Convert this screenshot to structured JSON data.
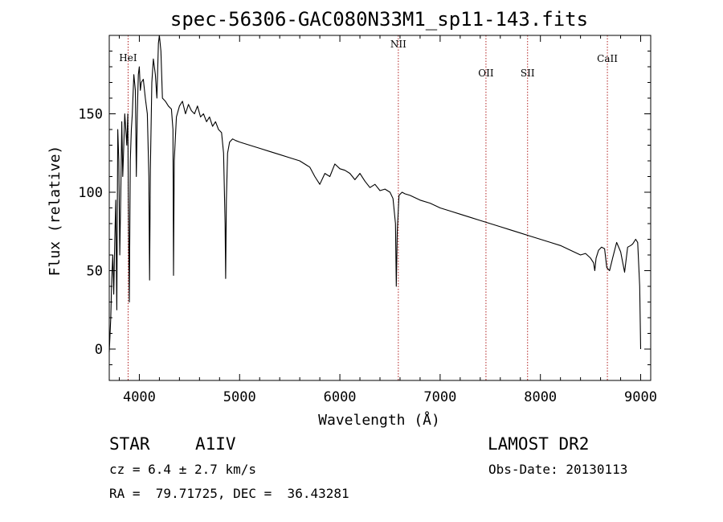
{
  "chart_data": {
    "type": "line",
    "title": "spec-56306-GAC080N33M1_sp11-143.fits",
    "xlabel": "Wavelength (Å)",
    "ylabel": "Flux (relative)",
    "xlim": [
      3700,
      9100
    ],
    "ylim": [
      -20,
      200
    ],
    "xticks": [
      4000,
      5000,
      6000,
      7000,
      8000,
      9000
    ],
    "yticks": [
      0,
      50,
      100,
      150
    ],
    "xtick_labels": [
      "4000",
      "5000",
      "6000",
      "7000",
      "8000",
      "9000"
    ],
    "ytick_labels": [
      "0",
      "50",
      "100",
      "150"
    ],
    "grid": false,
    "series": [
      {
        "color": "#000000",
        "x": [
          3700,
          3715,
          3725,
          3735,
          3745,
          3755,
          3765,
          3775,
          3785,
          3795,
          3805,
          3815,
          3825,
          3835,
          3845,
          3855,
          3865,
          3875,
          3885,
          3890,
          3900,
          3910,
          3920,
          3930,
          3945,
          3960,
          3970,
          3980,
          3990,
          4000,
          4010,
          4020,
          4040,
          4060,
          4080,
          4095,
          4102,
          4110,
          4125,
          4140,
          4160,
          4175,
          4190,
          4200,
          4215,
          4230,
          4260,
          4290,
          4320,
          4335,
          4341,
          4348,
          4370,
          4400,
          4430,
          4460,
          4490,
          4520,
          4550,
          4580,
          4610,
          4640,
          4670,
          4700,
          4730,
          4760,
          4790,
          4820,
          4840,
          4855,
          4861,
          4868,
          4880,
          4900,
          4930,
          4960,
          5000,
          5100,
          5200,
          5300,
          5400,
          5500,
          5600,
          5700,
          5750,
          5800,
          5850,
          5900,
          5950,
          6000,
          6050,
          6100,
          6150,
          6200,
          6250,
          6300,
          6350,
          6400,
          6450,
          6500,
          6530,
          6555,
          6563,
          6572,
          6590,
          6620,
          6650,
          6700,
          6800,
          6900,
          7000,
          7100,
          7200,
          7300,
          7400,
          7500,
          7600,
          7700,
          7800,
          7900,
          8000,
          8100,
          8200,
          8300,
          8400,
          8450,
          8500,
          8530,
          8542,
          8555,
          8580,
          8610,
          8640,
          8662,
          8690,
          8720,
          8760,
          8800,
          8840,
          8870,
          8900,
          8920,
          8950,
          8970,
          8990,
          9000
        ],
        "y": [
          -2,
          20,
          45,
          60,
          35,
          70,
          95,
          25,
          140,
          120,
          60,
          100,
          145,
          110,
          130,
          150,
          140,
          130,
          150,
          100,
          30,
          120,
          140,
          150,
          175,
          165,
          110,
          150,
          175,
          180,
          165,
          170,
          172,
          160,
          150,
          110,
          44,
          115,
          170,
          185,
          175,
          160,
          195,
          200,
          190,
          160,
          158,
          155,
          153,
          140,
          47,
          120,
          148,
          155,
          158,
          150,
          156,
          152,
          150,
          155,
          148,
          150,
          145,
          148,
          142,
          145,
          140,
          138,
          125,
          80,
          45,
          95,
          125,
          132,
          134,
          133,
          132,
          130,
          128,
          126,
          124,
          122,
          120,
          116,
          110,
          105,
          112,
          110,
          118,
          115,
          114,
          112,
          108,
          112,
          107,
          103,
          105,
          101,
          102,
          100,
          96,
          80,
          40,
          75,
          98,
          100,
          99,
          98,
          95,
          93,
          90,
          88,
          86,
          84,
          82,
          80,
          78,
          76,
          74,
          72,
          70,
          68,
          66,
          63,
          60,
          61,
          58,
          55,
          50,
          58,
          63,
          65,
          64,
          52,
          50,
          58,
          68,
          62,
          49,
          65,
          66,
          67,
          70,
          68,
          40,
          0
        ]
      }
    ],
    "annotations": [
      {
        "label": "HeI",
        "x": 3888
      },
      {
        "label": "NII",
        "x": 6583
      },
      {
        "label": "OII",
        "x": 7457
      },
      {
        "label": "SII",
        "x": 7872
      },
      {
        "label": "CaII",
        "x": 8668
      }
    ]
  },
  "info": {
    "object_type": "STAR",
    "spectral_class": "A1IV",
    "survey": "LAMOST DR2",
    "cz": "cz = 6.4 ± 2.7 km/s",
    "obs_date": "Obs-Date: 20130113",
    "coords": "RA =  79.71725, DEC =  36.43281"
  }
}
